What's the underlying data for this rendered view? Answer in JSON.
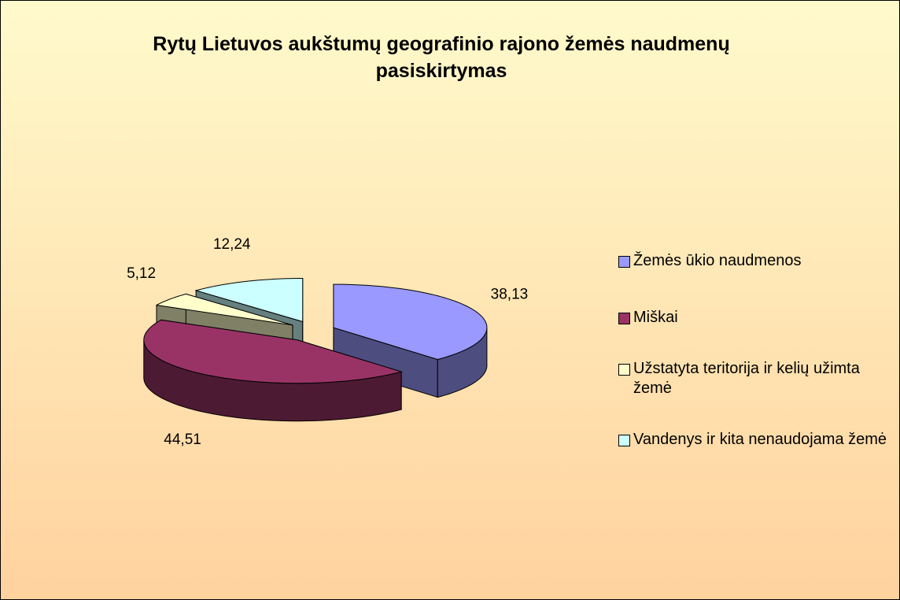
{
  "chart_data": {
    "type": "pie3d",
    "title": "Rytų Lietuvos aukštumų geografinio rajono žemės naudmenų pasiskirtymas",
    "categories": [
      "Žemės ūkio naudmenos",
      "Miškai",
      "Užstatyta teritorija ir kelių užimta žemė",
      "Vandenys ir kita nenaudojama žemė"
    ],
    "values": [
      38.13,
      44.51,
      5.12,
      12.24
    ],
    "value_labels": [
      "38,13",
      "44,51",
      "5,12",
      "12,24"
    ],
    "colors": [
      "#9999ff",
      "#993366",
      "#ffffcc",
      "#ccffff"
    ],
    "legend": "right"
  }
}
